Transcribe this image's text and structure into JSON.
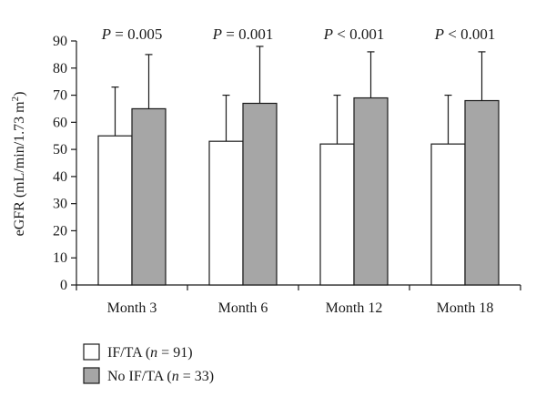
{
  "chart_data": {
    "type": "bar",
    "ylabel": "eGFR (mL/min/1.73 m²)",
    "ylabel_main": "eGFR (mL/min/1.73 m",
    "ylabel_sup": "2",
    "ylabel_close": ")",
    "ylim": [
      0,
      90
    ],
    "yticks": [
      "0",
      "10",
      "20",
      "30",
      "40",
      "50",
      "60",
      "70",
      "80",
      "90"
    ],
    "categories": [
      "Month 3",
      "Month 6",
      "Month 12",
      "Month 18"
    ],
    "series": [
      {
        "name": "IF/TA (n = 91)",
        "label_main": "IF/TA (",
        "label_var": "n",
        "label_rest": " = 91)",
        "color": "#ffffff",
        "values": [
          55,
          53,
          52,
          52
        ],
        "error_upper": [
          73,
          70,
          70,
          70
        ]
      },
      {
        "name": "No IF/TA (n = 33)",
        "label_main": "No IF/TA (",
        "label_var": "n",
        "label_rest": " = 33)",
        "color": "#a6a6a6",
        "values": [
          65,
          67,
          69,
          68
        ],
        "error_upper": [
          85,
          88,
          86,
          86
        ]
      }
    ],
    "annotations": [
      {
        "italic": "P",
        "rest": " = 0.005"
      },
      {
        "italic": "P",
        "rest": " = 0.001"
      },
      {
        "italic": "P",
        "rest": " < 0.001"
      },
      {
        "italic": "P",
        "rest": " < 0.001"
      }
    ],
    "legend_position": "bottom-left",
    "grid": false
  }
}
